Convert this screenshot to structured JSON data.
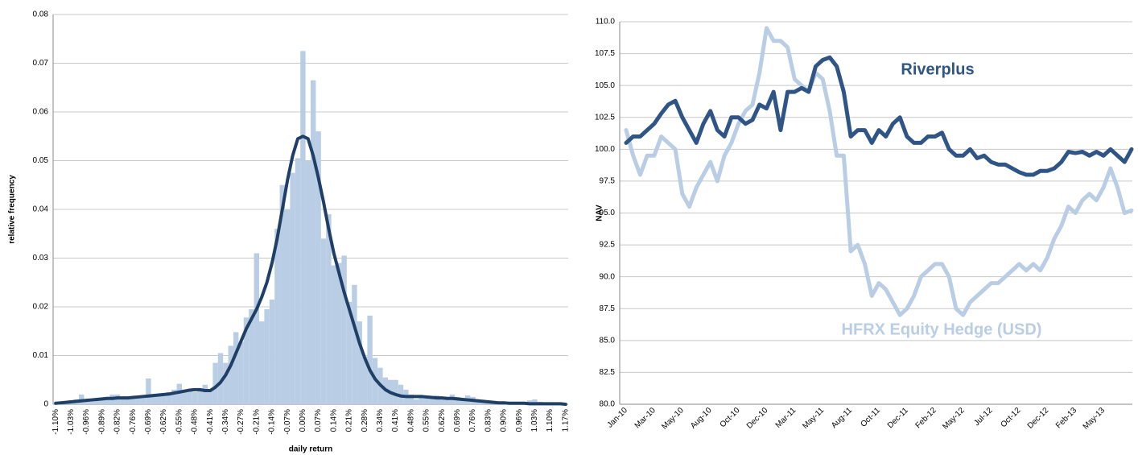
{
  "chart_data": [
    {
      "type": "bar",
      "y_label": "relative frequency",
      "x_label": "daily return",
      "categories": [
        "-1.10%",
        null,
        null,
        "-1.03%",
        null,
        null,
        "-0.96%",
        null,
        null,
        "-0.89%",
        null,
        null,
        "-0.82%",
        null,
        null,
        "-0.76%",
        null,
        null,
        "-0.69%",
        null,
        null,
        "-0.62%",
        null,
        null,
        "-0.55%",
        null,
        null,
        "-0.48%",
        null,
        null,
        "-0.41%",
        null,
        null,
        "-0.34%",
        null,
        null,
        "-0.27%",
        null,
        null,
        "-0.21%",
        null,
        null,
        "-0.14%",
        null,
        null,
        "-0.07%",
        null,
        null,
        "0.00%",
        null,
        null,
        "0.07%",
        null,
        null,
        "0.14%",
        null,
        null,
        "0.21%",
        null,
        null,
        "0.28%",
        null,
        null,
        "0.34%",
        null,
        null,
        "0.41%",
        null,
        null,
        "0.48%",
        null,
        null,
        "0.55%",
        null,
        null,
        "0.62%",
        null,
        null,
        "0.69%",
        null,
        null,
        "0.76%",
        null,
        null,
        "0.83%",
        null,
        null,
        "0.90%",
        null,
        null,
        "0.96%",
        null,
        null,
        "1.03%",
        null,
        null,
        "1.10%",
        null,
        null,
        "1.17%"
      ],
      "series": [
        {
          "type": "bar",
          "color": "#b9cde5",
          "values": [
            0.0003,
            0.0005,
            0.0005,
            0.0008,
            0.001,
            0.002,
            0.0008,
            0.001,
            0.0012,
            0.001,
            0.0015,
            0.002,
            0.002,
            0.0015,
            0.001,
            0.0012,
            0.0015,
            0.0018,
            0.0053,
            0.0015,
            0.002,
            0.002,
            0.0025,
            0.003,
            0.0042,
            0.003,
            0.003,
            0.0025,
            0.0028,
            0.004,
            0.003,
            0.0085,
            0.0105,
            0.0085,
            0.012,
            0.0148,
            0.0128,
            0.0178,
            0.0195,
            0.031,
            0.017,
            0.0195,
            0.0215,
            0.036,
            0.045,
            0.04,
            0.0475,
            0.0505,
            0.0725,
            0.05,
            0.0665,
            0.056,
            0.034,
            0.039,
            0.0285,
            0.029,
            0.0305,
            0.021,
            0.0245,
            0.017,
            0.0098,
            0.0182,
            0.0095,
            0.0075,
            0.0055,
            0.005,
            0.005,
            0.004,
            0.003,
            0.002,
            0.001,
            0.0015,
            0.0015,
            0.0012,
            0.0018,
            0.0015,
            0.001,
            0.002,
            0.0015,
            0.001,
            0.0018,
            0.0015,
            0.001,
            0.0008,
            0.0005,
            0.0005,
            0.0005,
            0.0003,
            0.0003,
            0.0005,
            0.0005,
            0.0003,
            0.0008,
            0.001,
            0.0005,
            0.0003,
            0.0002,
            0.0002,
            0.0002,
            0.0001
          ]
        },
        {
          "type": "line",
          "color": "#1f3f66",
          "values": [
            0.0002,
            0.0003,
            0.0004,
            0.0005,
            0.0006,
            0.0007,
            0.0008,
            0.0009,
            0.001,
            0.0011,
            0.0012,
            0.0012,
            0.0013,
            0.0013,
            0.0013,
            0.0014,
            0.0015,
            0.0016,
            0.0017,
            0.0018,
            0.0019,
            0.002,
            0.0021,
            0.0023,
            0.0025,
            0.0027,
            0.0029,
            0.003,
            0.003,
            0.0028,
            0.0028,
            0.0035,
            0.0045,
            0.006,
            0.008,
            0.0105,
            0.013,
            0.0155,
            0.0175,
            0.0195,
            0.022,
            0.025,
            0.029,
            0.034,
            0.04,
            0.046,
            0.051,
            0.0545,
            0.055,
            0.0545,
            0.051,
            0.0465,
            0.0415,
            0.036,
            0.031,
            0.027,
            0.023,
            0.0195,
            0.016,
            0.0125,
            0.0095,
            0.007,
            0.0052,
            0.004,
            0.003,
            0.0024,
            0.002,
            0.0017,
            0.0016,
            0.0016,
            0.0016,
            0.0016,
            0.0015,
            0.0014,
            0.0013,
            0.0013,
            0.0012,
            0.0012,
            0.0011,
            0.001,
            0.0009,
            0.0008,
            0.0007,
            0.0006,
            0.0005,
            0.0004,
            0.0003,
            0.0003,
            0.0002,
            0.0002,
            0.0002,
            0.0002,
            0.0001,
            0.0001,
            0.0001,
            0.0001,
            0.0001,
            0.0001,
            0.0001,
            0
          ]
        }
      ],
      "ylim": [
        0,
        0.08
      ],
      "yticks": [
        0,
        0.01,
        0.02,
        0.03,
        0.04,
        0.05,
        0.06,
        0.07,
        0.08
      ],
      "grid": true
    },
    {
      "type": "line",
      "y_label": "NAV",
      "categories": [
        "Jan-10",
        null,
        null,
        null,
        "Mar-10",
        null,
        null,
        null,
        "May-10",
        null,
        null,
        null,
        "Aug-10",
        null,
        null,
        null,
        "Oct-10",
        null,
        null,
        null,
        "Dec-10",
        null,
        null,
        null,
        "Mar-11",
        null,
        null,
        null,
        "May-11",
        null,
        null,
        null,
        "Aug-11",
        null,
        null,
        null,
        "Oct-11",
        null,
        null,
        null,
        "Dec-11",
        null,
        null,
        null,
        "Feb-12",
        null,
        null,
        null,
        "May-12",
        null,
        null,
        null,
        "Jul-12",
        null,
        null,
        null,
        "Oct-12",
        null,
        null,
        null,
        "Dec-12",
        null,
        null,
        null,
        "Feb-13",
        null,
        null,
        null,
        "May-13",
        null,
        null,
        null,
        null
      ],
      "series": [
        {
          "name": "Riverplus",
          "color": "#2f5587",
          "values": [
            100.5,
            101,
            101,
            101.5,
            102,
            102.8,
            103.5,
            103.8,
            102.5,
            101.5,
            100.5,
            102,
            103,
            101.5,
            101,
            102.5,
            102.5,
            102,
            102.3,
            103.5,
            103.2,
            104.5,
            101.5,
            104.5,
            104.5,
            104.8,
            104.5,
            106.5,
            107,
            107.2,
            106.5,
            104.5,
            101,
            101.5,
            101.5,
            100.5,
            101.5,
            101,
            102,
            102.5,
            101,
            100.5,
            100.5,
            101,
            101,
            101.3,
            100,
            99.5,
            99.5,
            100,
            99.3,
            99.5,
            99,
            98.8,
            98.8,
            98.5,
            98.2,
            98,
            98,
            98.3,
            98.3,
            98.5,
            99,
            99.8,
            99.7,
            99.8,
            99.5,
            99.8,
            99.5,
            100,
            99.5,
            99,
            100
          ]
        },
        {
          "name": "HFRX Equity Hedge (USD)",
          "color": "#b9cde5",
          "values": [
            101.5,
            99.5,
            98,
            99.5,
            99.5,
            101,
            100.5,
            100,
            96.5,
            95.5,
            97,
            98,
            99,
            97.5,
            99.5,
            100.5,
            102,
            103,
            103.5,
            106,
            109.5,
            108.5,
            108.5,
            108,
            105.5,
            105,
            104.5,
            106,
            105.5,
            103,
            99.5,
            99.5,
            92,
            92.5,
            91,
            88.5,
            89.5,
            89,
            88,
            87,
            87.5,
            88.5,
            90,
            90.5,
            91,
            91,
            90,
            87.5,
            87,
            88,
            88.5,
            89,
            89.5,
            89.5,
            90,
            90.5,
            91,
            90.5,
            91,
            90.5,
            91.5,
            93,
            94,
            95.5,
            95,
            96,
            96.5,
            96,
            97,
            98.5,
            97,
            95,
            95.2
          ]
        }
      ],
      "ylim": [
        80,
        110
      ],
      "yticks": [
        {
          "value": 80,
          "label": "80.0"
        },
        {
          "value": 82.5,
          "label": "82.5"
        },
        {
          "value": 85,
          "label": "85.0"
        },
        {
          "value": 87.5,
          "label": "87.5"
        },
        {
          "value": 90,
          "label": "90.0"
        },
        {
          "value": 92.5,
          "label": "92.5"
        },
        {
          "value": 95,
          "label": "95.0"
        },
        {
          "value": 97.5,
          "label": "97.5"
        },
        {
          "value": 100,
          "label": "100.0"
        },
        {
          "value": 102.5,
          "label": "102.5"
        },
        {
          "value": 105,
          "label": "105.0"
        },
        {
          "value": 107.5,
          "label": "107.5"
        },
        {
          "value": 110,
          "label": "110.0"
        }
      ],
      "grid": true
    }
  ]
}
